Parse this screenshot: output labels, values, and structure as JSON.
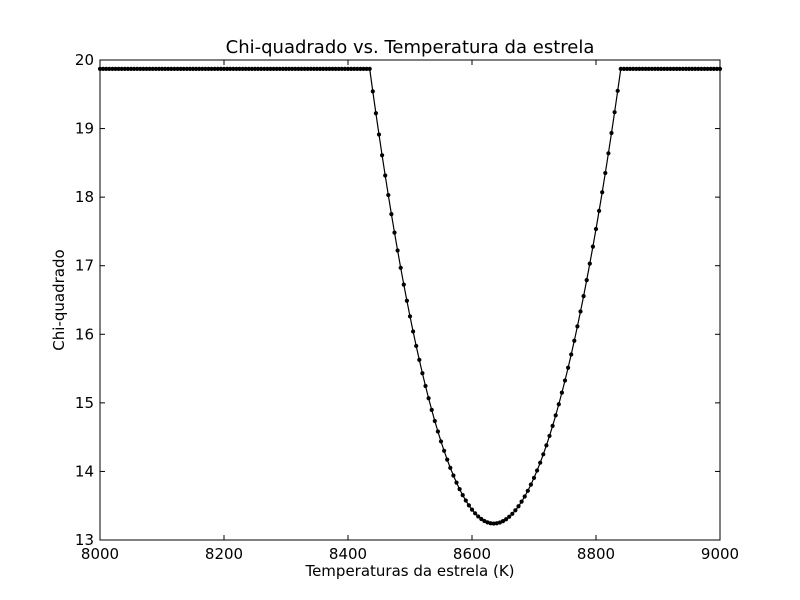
{
  "chart_data": {
    "type": "line",
    "title": "Chi-quadrado vs. Temperatura da estrela",
    "xlabel": "Temperaturas da estrela (K)",
    "ylabel": "Chi-quadrado",
    "xlim": [
      8000,
      9000
    ],
    "ylim": [
      13,
      20
    ],
    "xticks": [
      8000,
      8200,
      8400,
      8600,
      8800,
      9000
    ],
    "yticks": [
      13,
      14,
      15,
      16,
      17,
      18,
      19,
      20
    ],
    "grid": false,
    "line_color": "#000000",
    "marker": "circle",
    "series": [
      {
        "x_range": [
          8000,
          9000
        ],
        "x_step": 5,
        "plateau_value": 19.87,
        "minimum": {
          "x": 8635,
          "y": 13.24
        },
        "left_edge": {
          "x": 8435,
          "y": 19.87
        },
        "right_edge": {
          "x": 8840,
          "y": 19.87
        },
        "curve": "parabola"
      }
    ]
  }
}
